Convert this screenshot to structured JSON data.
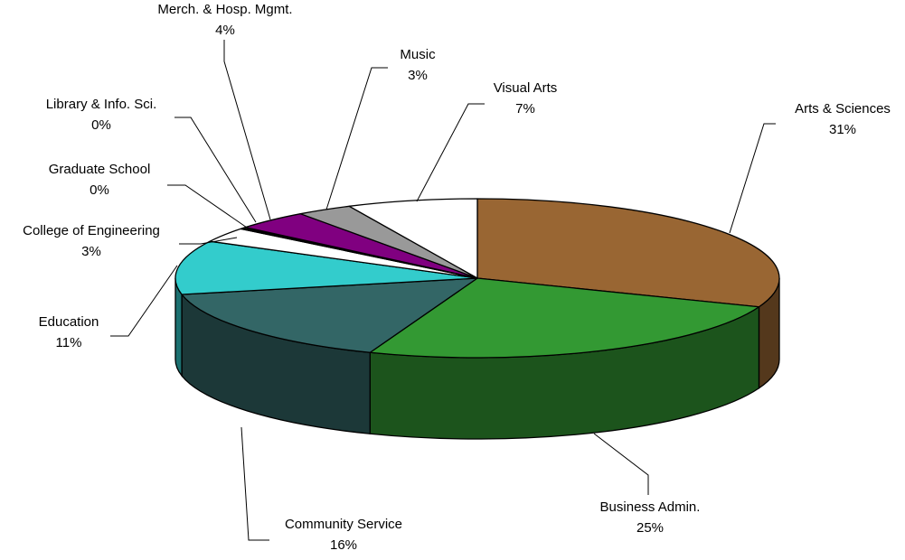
{
  "chart_data": {
    "type": "pie",
    "title": "",
    "three_d": true,
    "legend": "none",
    "slices": [
      {
        "label": "Arts & Sciences",
        "value": 31,
        "value_label": "31%",
        "color": "#996633"
      },
      {
        "label": "Business Admin.",
        "value": 25,
        "value_label": "25%",
        "color": "#339933"
      },
      {
        "label": "Community Service",
        "value": 16,
        "value_label": "16%",
        "color": "#336666"
      },
      {
        "label": "Education",
        "value": 11,
        "value_label": "11%",
        "color": "#33CCCC"
      },
      {
        "label": "College of Engineering",
        "value": 3,
        "value_label": "3%",
        "color": "#FFFFFF"
      },
      {
        "label": "Graduate School",
        "value": 0,
        "value_label": "0%",
        "color": "#FFFFFF"
      },
      {
        "label": "Library & Info. Sci.",
        "value": 0,
        "value_label": "0%",
        "color": "#FFFFFF"
      },
      {
        "label": "Merch. & Hosp. Mgmt.",
        "value": 4,
        "value_label": "4%",
        "color": "#800080"
      },
      {
        "label": "Music",
        "value": 3,
        "value_label": "3%",
        "color": "#999999"
      },
      {
        "label": "Visual Arts",
        "value": 7,
        "value_label": "7%",
        "color": "#FFFFFF"
      }
    ]
  }
}
